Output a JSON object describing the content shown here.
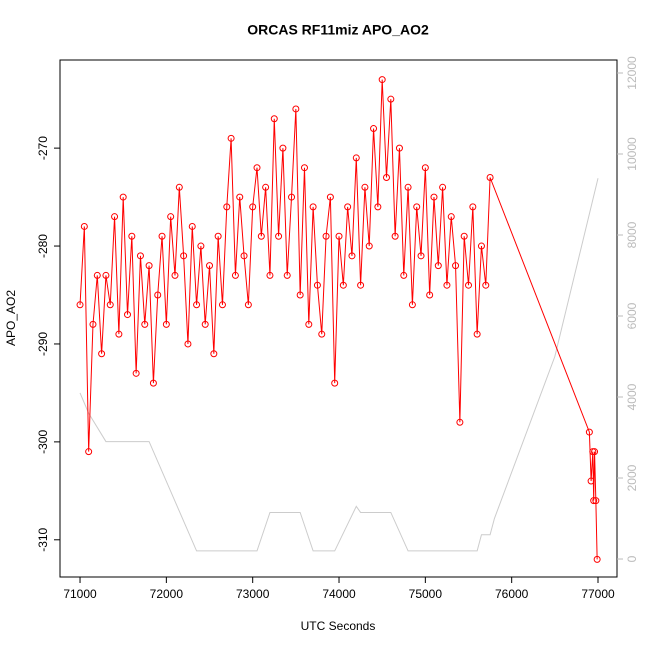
{
  "chart_data": {
    "type": "line",
    "title": "ORCAS RF11miz APO_AO2",
    "xlabel": "UTC Seconds",
    "ylabel": "APO_AO2",
    "xlim": [
      70768,
      77220
    ],
    "xticks": [
      71000,
      72000,
      73000,
      74000,
      75000,
      76000,
      77000
    ],
    "ylim": [
      -313.8,
      -261.0
    ],
    "yticks": [
      -310,
      -300,
      -290,
      -280,
      -270
    ],
    "y2lim": [
      -444,
      12321
    ],
    "y2ticks": [
      0,
      2000,
      4000,
      6000,
      8000,
      10000,
      12000
    ],
    "series": [
      {
        "color": "#ff0000",
        "markers": true,
        "x": [
          71000,
          71050,
          71100,
          71150,
          71200,
          71250,
          71300,
          71350,
          71400,
          71450,
          71500,
          71550,
          71600,
          71650,
          71700,
          71750,
          71800,
          71850,
          71900,
          71950,
          72000,
          72050,
          72100,
          72150,
          72200,
          72250,
          72300,
          72350,
          72400,
          72450,
          72500,
          72550,
          72600,
          72650,
          72700,
          72750,
          72800,
          72850,
          72900,
          72950,
          73000,
          73050,
          73100,
          73150,
          73200,
          73250,
          73300,
          73350,
          73400,
          73450,
          73500,
          73550,
          73600,
          73650,
          73700,
          73750,
          73800,
          73850,
          73900,
          73950,
          74000,
          74050,
          74100,
          74150,
          74200,
          74250,
          74300,
          74350,
          74400,
          74450,
          74500,
          74550,
          74600,
          74650,
          74700,
          74750,
          74800,
          74850,
          74900,
          74950,
          75000,
          75050,
          75100,
          75150,
          75200,
          75250,
          75300,
          75350,
          75400,
          75450,
          75500,
          75550,
          75600,
          75650,
          75700,
          75750,
          76900,
          76920,
          76940,
          76950,
          76960,
          76975,
          76990
        ],
        "values": [
          -286,
          -278,
          -301,
          -288,
          -283,
          -291,
          -283,
          -286,
          -277,
          -289,
          -275,
          -287,
          -279,
          -293,
          -281,
          -288,
          -282,
          -294,
          -285,
          -279,
          -288,
          -277,
          -283,
          -274,
          -281,
          -290,
          -278,
          -286,
          -280,
          -288,
          -282,
          -291,
          -279,
          -286,
          -276,
          -269,
          -283,
          -275,
          -281,
          -286,
          -276,
          -272,
          -279,
          -274,
          -283,
          -267,
          -279,
          -270,
          -283,
          -275,
          -266,
          -285,
          -272,
          -288,
          -276,
          -284,
          -289,
          -279,
          -275,
          -294,
          -279,
          -284,
          -276,
          -281,
          -271,
          -284,
          -274,
          -280,
          -268,
          -276,
          -263,
          -273,
          -265,
          -279,
          -270,
          -283,
          -274,
          -286,
          -276,
          -281,
          -272,
          -285,
          -275,
          -282,
          -274,
          -284,
          -277,
          -282,
          -298,
          -279,
          -284,
          -276,
          -289,
          -280,
          -284,
          -273,
          -299,
          -304,
          -301,
          -306,
          -301,
          -306,
          -312
        ]
      },
      {
        "color": "#cccccc",
        "axis": "y2",
        "markers": false,
        "x": [
          71000,
          71100,
          71300,
          71800,
          72350,
          73050,
          73200,
          73550,
          73700,
          73950,
          74200,
          74250,
          74600,
          74800,
          75600,
          75650,
          75750,
          75800,
          76500,
          77000
        ],
        "values": [
          4100,
          3600,
          2900,
          2900,
          200,
          200,
          1150,
          1150,
          200,
          200,
          1300,
          1150,
          1150,
          200,
          200,
          600,
          600,
          1000,
          5000,
          9400
        ]
      }
    ]
  }
}
